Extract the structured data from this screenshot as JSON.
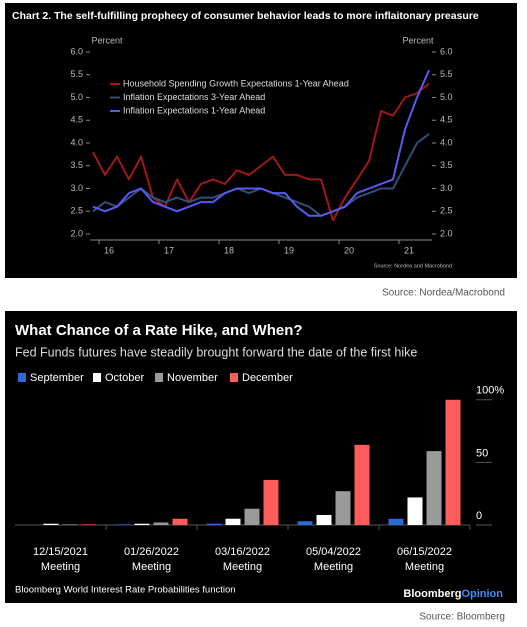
{
  "chart_data": [
    {
      "type": "line",
      "title": "Chart 2. The self-fulfilling prophecy of consumer behavior leads to more inflaitonary preasure",
      "y_label": "Percent",
      "y2_label": "Percent",
      "note": "Source: Nordea and Macrobond",
      "source": "Source: Nordea/Macrobond",
      "x": [
        2015.9,
        2016.1,
        2016.3,
        2016.5,
        2016.7,
        2016.9,
        2017.1,
        2017.3,
        2017.5,
        2017.7,
        2017.9,
        2018.1,
        2018.3,
        2018.5,
        2018.7,
        2018.9,
        2019.1,
        2019.3,
        2019.5,
        2019.7,
        2019.9,
        2020.1,
        2020.3,
        2020.5,
        2020.7,
        2020.9,
        2021.1,
        2021.3,
        2021.5
      ],
      "xlim": [
        2015.85,
        2021.55
      ],
      "xticks": [
        {
          "value": 2016,
          "label": "16"
        },
        {
          "value": 2017,
          "label": "17"
        },
        {
          "value": 2018,
          "label": "18"
        },
        {
          "value": 2019,
          "label": "19"
        },
        {
          "value": 2020,
          "label": "20"
        },
        {
          "value": 2021,
          "label": "21"
        }
      ],
      "ylim": [
        2,
        6
      ],
      "yticks": [
        {
          "value": 2,
          "label": "2.0"
        },
        {
          "value": 2.5,
          "label": "2.5"
        },
        {
          "value": 3,
          "label": "3.0"
        },
        {
          "value": 3.5,
          "label": "3.5"
        },
        {
          "value": 4,
          "label": "4.0"
        },
        {
          "value": 4.5,
          "label": "4.5"
        },
        {
          "value": 5,
          "label": "5.0"
        },
        {
          "value": 5.5,
          "label": "5.5"
        },
        {
          "value": 6,
          "label": "6.0"
        }
      ],
      "y2lim": [
        2,
        6
      ],
      "y2ticks": [
        {
          "value": 2,
          "label": "2.0"
        },
        {
          "value": 2.5,
          "label": "2.5"
        },
        {
          "value": 3,
          "label": "3.0"
        },
        {
          "value": 3.5,
          "label": "3.5"
        },
        {
          "value": 4,
          "label": "4.0"
        },
        {
          "value": 4.5,
          "label": "4.5"
        },
        {
          "value": 5,
          "label": "5.0"
        },
        {
          "value": 5.5,
          "label": "5.5"
        },
        {
          "value": 6,
          "label": "6.0"
        }
      ],
      "grid": false,
      "series": [
        {
          "name": "Household Spending Growth Expectations 1-Year Ahead",
          "color": "#a01818",
          "values": [
            3.8,
            3.3,
            3.7,
            3.2,
            3.7,
            2.8,
            2.6,
            3.2,
            2.7,
            3.1,
            3.2,
            3.1,
            3.4,
            3.3,
            3.5,
            3.7,
            3.3,
            3.3,
            3.2,
            3.2,
            2.3,
            2.8,
            3.2,
            3.6,
            4.7,
            4.6,
            5.0,
            5.1,
            5.3
          ]
        },
        {
          "name": "Inflation Expectations 3-Year Ahead",
          "color": "#2f5078",
          "values": [
            2.5,
            2.7,
            2.6,
            2.8,
            3.0,
            2.8,
            2.7,
            2.8,
            2.7,
            2.8,
            2.8,
            2.9,
            3.0,
            2.9,
            3.0,
            2.9,
            2.8,
            2.7,
            2.6,
            2.4,
            2.5,
            2.6,
            2.8,
            2.9,
            3.0,
            3.0,
            3.5,
            4.0,
            4.2
          ]
        },
        {
          "name": "Inflation Expectations 1-Year Ahead",
          "color": "#5a5af0",
          "values": [
            2.6,
            2.5,
            2.6,
            2.9,
            3.0,
            2.7,
            2.6,
            2.5,
            2.6,
            2.7,
            2.7,
            2.9,
            3.0,
            3.0,
            3.0,
            2.9,
            2.9,
            2.6,
            2.4,
            2.4,
            2.5,
            2.6,
            2.9,
            3.0,
            3.1,
            3.2,
            4.3,
            5.0,
            5.6
          ]
        }
      ]
    },
    {
      "type": "bar",
      "title": "What Chance of a Rate Hike, and When?",
      "subtitle": "Fed Funds futures have steadily brought forward the date of the first hike",
      "footnote": "Bloomberg World Interest Rate Probabilities function",
      "logo": [
        "Bloomberg",
        "Opinion"
      ],
      "source": "Source: Bloomberg",
      "categories": [
        "12/15/2021 Meeting",
        "01/26/2022 Meeting",
        "03/16/2022 Meeting",
        "05/04/2022 Meeting",
        "06/15/2022 Meeting"
      ],
      "ylim": [
        0,
        107
      ],
      "yticks": [
        0,
        50,
        {
          "value": 100,
          "label": "100%"
        }
      ],
      "grid": false,
      "series": [
        {
          "name": "September",
          "color": "#2a6bd8",
          "values": [
            0,
            0.5,
            1,
            3,
            5
          ]
        },
        {
          "name": "October",
          "color": "#ffffff",
          "values": [
            1,
            1,
            5,
            8,
            22
          ]
        },
        {
          "name": "November",
          "color": "#9a9a9a",
          "values": [
            0.5,
            2,
            13,
            27,
            59
          ]
        },
        {
          "name": "December",
          "color": "#ff5c5c",
          "values": [
            0.5,
            5,
            36,
            64,
            100
          ]
        }
      ]
    }
  ]
}
